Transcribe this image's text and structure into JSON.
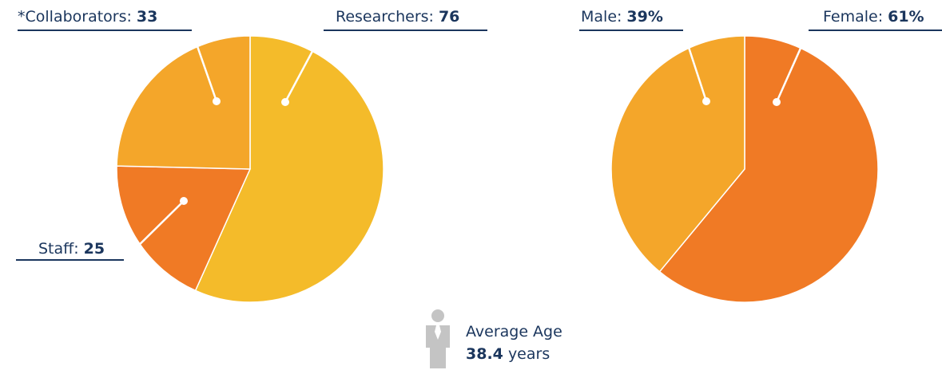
{
  "chart_data": [
    {
      "type": "pie",
      "categories": [
        "Researchers:",
        "Staff:",
        "*Collaborators:"
      ],
      "values": [
        76,
        25,
        33
      ],
      "colors": [
        "#f4bb2a",
        "#f07a25",
        "#f4a62a"
      ]
    },
    {
      "type": "pie",
      "categories": [
        "Female:",
        "Male:"
      ],
      "values": [
        61,
        39
      ],
      "value_labels": [
        "61%",
        "39%"
      ],
      "colors": [
        "#f07a25",
        "#f4a62a"
      ]
    }
  ],
  "average_age": {
    "label": "Average Age",
    "value": 38.4,
    "unit": "years"
  }
}
